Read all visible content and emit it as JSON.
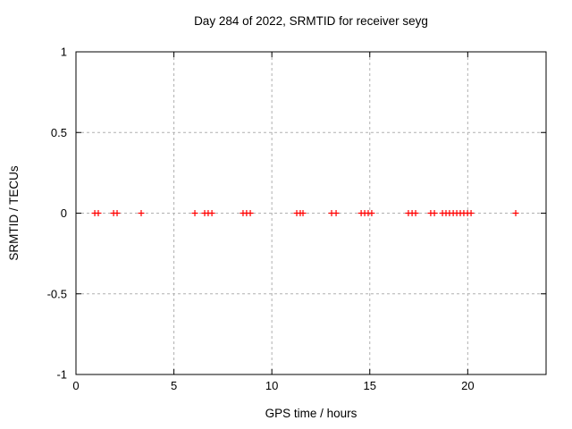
{
  "page": {
    "background": "#ffffff"
  },
  "chart_data": {
    "type": "scatter",
    "title": "Day 284 of 2022, SRMTID for receiver seyg",
    "xlabel": "GPS time / hours",
    "ylabel": "SRMTID / TECUs",
    "xlim": [
      0,
      24
    ],
    "ylim": [
      -1,
      1
    ],
    "xticks": [
      0,
      5,
      10,
      15,
      20
    ],
    "xtick_labels": [
      "0",
      "5",
      "10",
      "15",
      "20"
    ],
    "yticks": [
      -1,
      -0.5,
      0,
      0.5,
      1
    ],
    "ytick_labels": [
      "-1",
      "-0.5",
      "0",
      "0.5",
      "1"
    ],
    "grid": true,
    "legend_position": "none",
    "marker_style": "plus",
    "colors": {
      "marker": "#ff0000",
      "grid": "#b0b0b0",
      "axis": "#000000",
      "text": "#000000"
    },
    "series": [
      {
        "name": "SRMTID",
        "x": [
          0.96,
          1.14,
          1.92,
          2.1,
          3.33,
          6.07,
          6.57,
          6.75,
          6.94,
          8.53,
          8.71,
          8.9,
          11.27,
          11.45,
          11.59,
          13.05,
          13.28,
          14.56,
          14.74,
          14.92,
          15.1,
          16.97,
          17.16,
          17.34,
          18.11,
          18.3,
          18.71,
          18.89,
          19.07,
          19.26,
          19.44,
          19.62,
          19.8,
          19.99,
          20.17,
          22.45
        ],
        "y": [
          0,
          0,
          0,
          0,
          0,
          0,
          0,
          0,
          0,
          0,
          0,
          0,
          0,
          0,
          0,
          0,
          0,
          0,
          0,
          0,
          0,
          0,
          0,
          0,
          0,
          0,
          0,
          0,
          0,
          0,
          0,
          0,
          0,
          0,
          0,
          0
        ]
      }
    ]
  }
}
